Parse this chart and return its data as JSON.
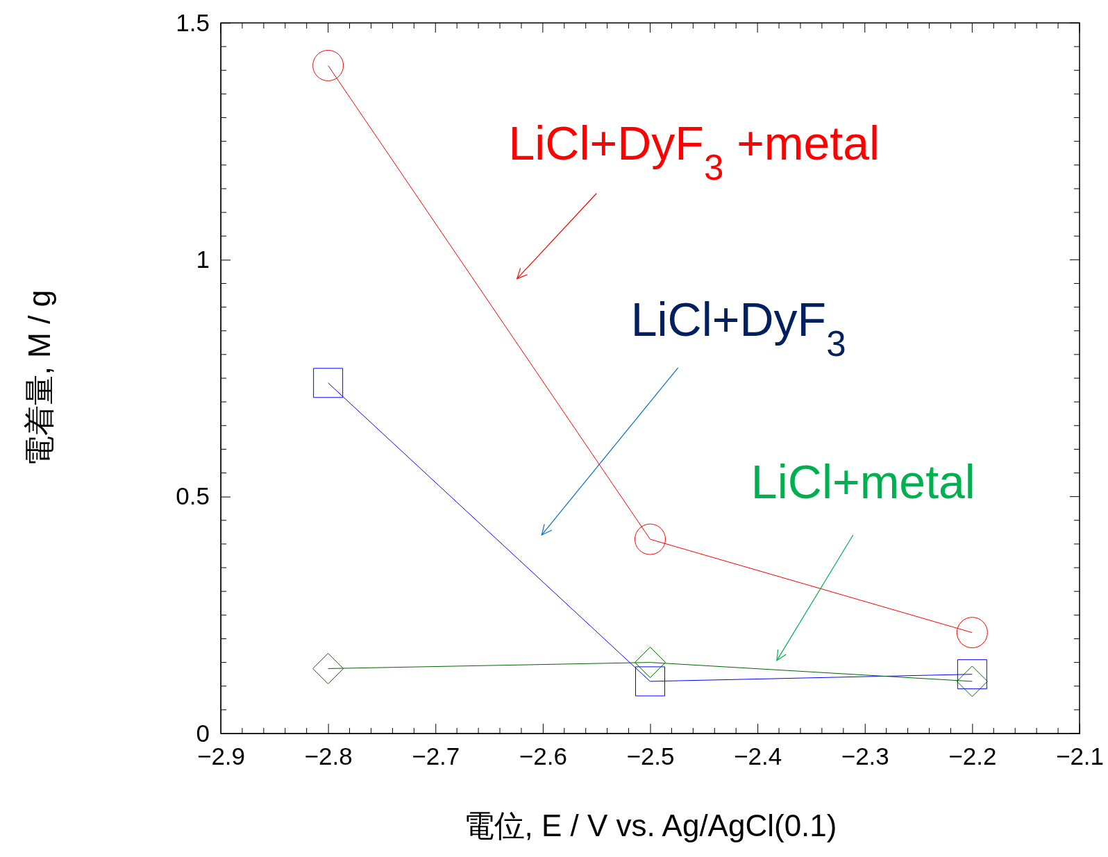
{
  "chart_data": {
    "type": "line",
    "xlabel": "電位, E / V vs. Ag/AgCl(0.1)",
    "ylabel": "電着量, M / g",
    "x": [
      -2.8,
      -2.5,
      -2.2
    ],
    "xlim": [
      -2.9,
      -2.1
    ],
    "ylim": [
      0,
      1.5
    ],
    "xticks": [
      {
        "value": -2.9,
        "label": "−2.9"
      },
      {
        "value": -2.8,
        "label": "−2.8"
      },
      {
        "value": -2.7,
        "label": "−2.7"
      },
      {
        "value": -2.6,
        "label": "−2.6"
      },
      {
        "value": -2.5,
        "label": "−2.5"
      },
      {
        "value": -2.4,
        "label": "−2.4"
      },
      {
        "value": -2.3,
        "label": "−2.3"
      },
      {
        "value": -2.2,
        "label": "−2.2"
      },
      {
        "value": -2.1,
        "label": "−2.1"
      }
    ],
    "yticks": [
      0,
      {
        "value": 0.5,
        "label": "0.5"
      },
      1,
      {
        "value": 1.5,
        "label": "1.5"
      }
    ],
    "grid": false,
    "series": [
      {
        "name": "LiCl+DyF$_{3}$ +metal",
        "color": "#ff0000",
        "marker": "circle",
        "values": [
          1.41,
          0.41,
          0.213
        ]
      },
      {
        "name": "LiCl+DyF$_{3}$",
        "color": "#0000ff",
        "marker": "square",
        "values": [
          0.74,
          0.11,
          0.125
        ]
      },
      {
        "name": "LiCl+metal",
        "color": "#006400",
        "marker": "diamond",
        "values": [
          0.137,
          0.15,
          0.11
        ]
      }
    ]
  }
}
